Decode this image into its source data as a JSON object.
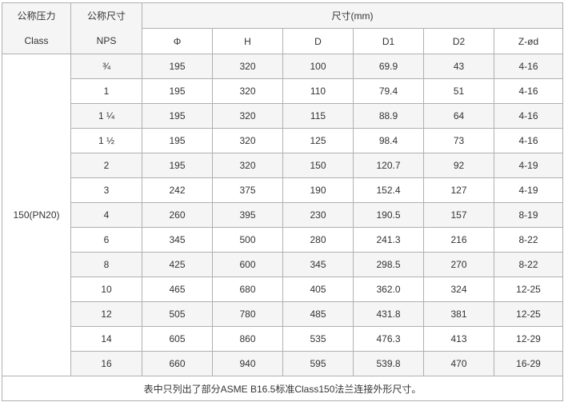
{
  "headers": {
    "pressure_cn": "公称压力",
    "pressure_en": "Class",
    "size_cn": "公称尺寸",
    "size_en": "NPS",
    "dimensions": "尺寸(mm)",
    "columns": [
      "Φ",
      "H",
      "D",
      "D1",
      "D2",
      "Z-ød"
    ]
  },
  "class_value": "150(PN20)",
  "rows": [
    {
      "nps": "¾",
      "values": [
        "195",
        "320",
        "100",
        "69.9",
        "43",
        "4-16"
      ]
    },
    {
      "nps": "1",
      "values": [
        "195",
        "320",
        "110",
        "79.4",
        "51",
        "4-16"
      ]
    },
    {
      "nps": "1 ¼",
      "values": [
        "195",
        "320",
        "115",
        "88.9",
        "64",
        "4-16"
      ]
    },
    {
      "nps": "1 ½",
      "values": [
        "195",
        "320",
        "125",
        "98.4",
        "73",
        "4-16"
      ]
    },
    {
      "nps": "2",
      "values": [
        "195",
        "320",
        "150",
        "120.7",
        "92",
        "4-19"
      ]
    },
    {
      "nps": "3",
      "values": [
        "242",
        "375",
        "190",
        "152.4",
        "127",
        "4-19"
      ]
    },
    {
      "nps": "4",
      "values": [
        "260",
        "395",
        "230",
        "190.5",
        "157",
        "8-19"
      ]
    },
    {
      "nps": "6",
      "values": [
        "345",
        "500",
        "280",
        "241.3",
        "216",
        "8-22"
      ]
    },
    {
      "nps": "8",
      "values": [
        "425",
        "600",
        "345",
        "298.5",
        "270",
        "8-22"
      ]
    },
    {
      "nps": "10",
      "values": [
        "465",
        "680",
        "405",
        "362.0",
        "324",
        "12-25"
      ]
    },
    {
      "nps": "12",
      "values": [
        "505",
        "780",
        "485",
        "431.8",
        "381",
        "12-25"
      ]
    },
    {
      "nps": "14",
      "values": [
        "605",
        "860",
        "535",
        "476.3",
        "413",
        "12-29"
      ]
    },
    {
      "nps": "16",
      "values": [
        "660",
        "940",
        "595",
        "539.8",
        "470",
        "16-29"
      ]
    }
  ],
  "footnote": "表中只列出了部分ASME B16.5标准Class150法兰连接外形尺寸。"
}
